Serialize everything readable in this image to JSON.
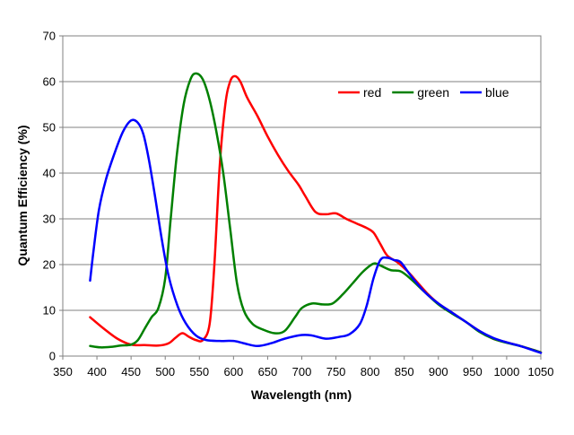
{
  "chart_data": {
    "type": "line",
    "title": "",
    "xlabel": "Wavelength (nm)",
    "ylabel": "Quantum Efficiency (%)",
    "xlim": [
      350,
      1050
    ],
    "ylim": [
      0,
      70
    ],
    "x_ticks": [
      350,
      400,
      450,
      500,
      550,
      600,
      650,
      700,
      750,
      800,
      850,
      900,
      950,
      1000,
      1050
    ],
    "y_ticks": [
      0,
      10,
      20,
      30,
      40,
      50,
      60,
      70
    ],
    "grid": "horizontal",
    "legend_position": "top-right",
    "series": [
      {
        "name": "red",
        "color": "#ff0000",
        "points": [
          [
            390,
            8.5
          ],
          [
            410,
            6
          ],
          [
            430,
            3.8
          ],
          [
            450,
            2.5
          ],
          [
            470,
            2.4
          ],
          [
            490,
            2.3
          ],
          [
            505,
            2.8
          ],
          [
            515,
            4
          ],
          [
            525,
            5
          ],
          [
            535,
            4.2
          ],
          [
            545,
            3.5
          ],
          [
            555,
            3.5
          ],
          [
            565,
            7
          ],
          [
            572,
            20
          ],
          [
            580,
            42
          ],
          [
            588,
            55
          ],
          [
            595,
            60
          ],
          [
            602,
            61.2
          ],
          [
            610,
            60
          ],
          [
            620,
            56.5
          ],
          [
            635,
            52.5
          ],
          [
            650,
            48
          ],
          [
            665,
            44
          ],
          [
            680,
            40.5
          ],
          [
            695,
            37.5
          ],
          [
            705,
            35
          ],
          [
            720,
            31.5
          ],
          [
            735,
            31
          ],
          [
            750,
            31.2
          ],
          [
            765,
            30
          ],
          [
            780,
            29
          ],
          [
            795,
            28
          ],
          [
            805,
            27
          ],
          [
            815,
            24.5
          ],
          [
            825,
            22
          ],
          [
            840,
            20.5
          ],
          [
            855,
            18.5
          ],
          [
            870,
            16
          ],
          [
            885,
            13.5
          ],
          [
            900,
            11.5
          ],
          [
            920,
            9.5
          ],
          [
            940,
            7.5
          ],
          [
            960,
            5.5
          ],
          [
            980,
            3.8
          ],
          [
            1000,
            3
          ],
          [
            1020,
            2.2
          ],
          [
            1040,
            1.3
          ],
          [
            1050,
            0.8
          ]
        ]
      },
      {
        "name": "green",
        "color": "#008000",
        "points": [
          [
            390,
            2.2
          ],
          [
            405,
            1.9
          ],
          [
            420,
            2
          ],
          [
            435,
            2.3
          ],
          [
            450,
            2.5
          ],
          [
            460,
            3.5
          ],
          [
            470,
            6
          ],
          [
            480,
            8.5
          ],
          [
            490,
            10.5
          ],
          [
            500,
            17
          ],
          [
            508,
            30
          ],
          [
            517,
            44
          ],
          [
            527,
            55
          ],
          [
            537,
            60.5
          ],
          [
            545,
            61.8
          ],
          [
            555,
            60.5
          ],
          [
            565,
            56
          ],
          [
            575,
            49
          ],
          [
            585,
            40
          ],
          [
            595,
            28
          ],
          [
            605,
            16
          ],
          [
            615,
            10
          ],
          [
            628,
            7
          ],
          [
            643,
            5.8
          ],
          [
            660,
            5
          ],
          [
            675,
            5.5
          ],
          [
            690,
            8.5
          ],
          [
            700,
            10.5
          ],
          [
            715,
            11.5
          ],
          [
            730,
            11.3
          ],
          [
            745,
            11.5
          ],
          [
            760,
            13.5
          ],
          [
            775,
            16
          ],
          [
            790,
            18.5
          ],
          [
            805,
            20.2
          ],
          [
            815,
            19.8
          ],
          [
            830,
            18.8
          ],
          [
            845,
            18.5
          ],
          [
            860,
            16.8
          ],
          [
            880,
            14
          ],
          [
            900,
            11.3
          ],
          [
            920,
            9.3
          ],
          [
            940,
            7.5
          ],
          [
            960,
            5.3
          ],
          [
            980,
            3.8
          ],
          [
            1000,
            2.9
          ],
          [
            1020,
            2.2
          ],
          [
            1040,
            1.3
          ],
          [
            1050,
            0.8
          ]
        ]
      },
      {
        "name": "blue",
        "color": "#0000ff",
        "points": [
          [
            390,
            16.5
          ],
          [
            395,
            23
          ],
          [
            403,
            32
          ],
          [
            413,
            38.5
          ],
          [
            425,
            44
          ],
          [
            438,
            49
          ],
          [
            450,
            51.5
          ],
          [
            460,
            51
          ],
          [
            468,
            48.5
          ],
          [
            476,
            43
          ],
          [
            485,
            35
          ],
          [
            495,
            25.5
          ],
          [
            505,
            17.5
          ],
          [
            518,
            11
          ],
          [
            530,
            7.2
          ],
          [
            545,
            4.5
          ],
          [
            560,
            3.5
          ],
          [
            580,
            3.3
          ],
          [
            600,
            3.3
          ],
          [
            615,
            2.8
          ],
          [
            635,
            2.2
          ],
          [
            655,
            2.8
          ],
          [
            675,
            3.8
          ],
          [
            700,
            4.6
          ],
          [
            715,
            4.5
          ],
          [
            735,
            3.8
          ],
          [
            755,
            4.2
          ],
          [
            770,
            4.8
          ],
          [
            785,
            7
          ],
          [
            795,
            11
          ],
          [
            805,
            17
          ],
          [
            815,
            21
          ],
          [
            825,
            21.5
          ],
          [
            835,
            21
          ],
          [
            845,
            20.5
          ],
          [
            860,
            17.5
          ],
          [
            880,
            14
          ],
          [
            900,
            11.5
          ],
          [
            920,
            9.5
          ],
          [
            940,
            7.5
          ],
          [
            960,
            5.5
          ],
          [
            980,
            4
          ],
          [
            1000,
            3
          ],
          [
            1020,
            2.2
          ],
          [
            1040,
            1.2
          ],
          [
            1050,
            0.7
          ]
        ]
      }
    ]
  }
}
